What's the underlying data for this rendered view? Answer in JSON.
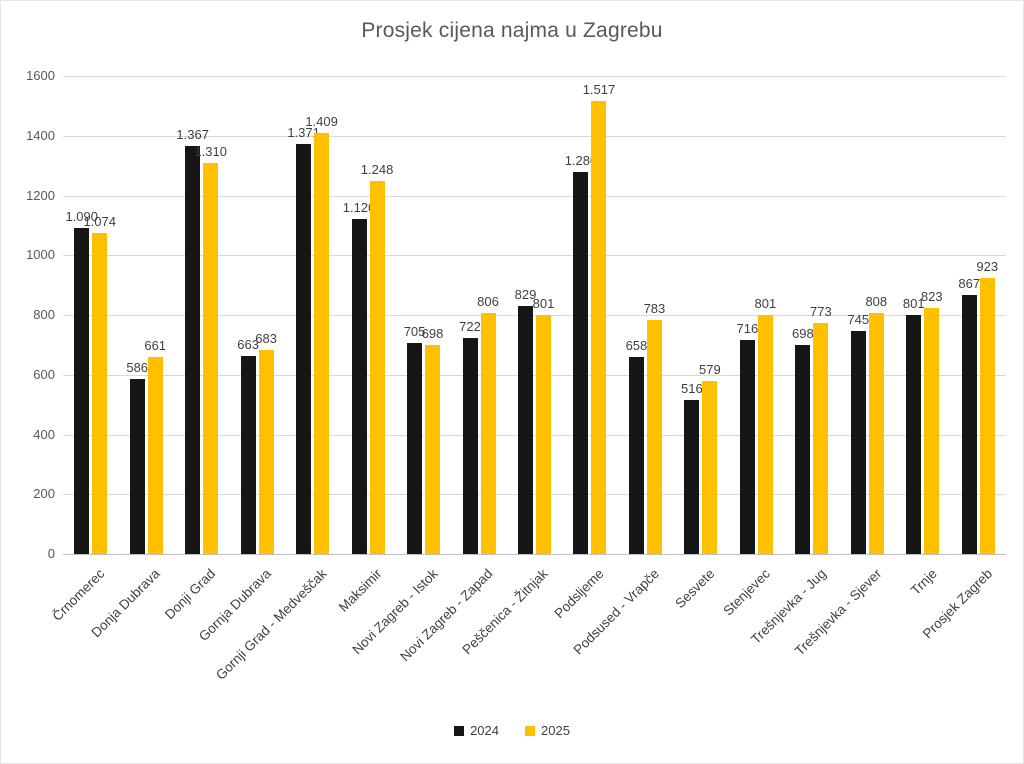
{
  "chart_data": {
    "type": "bar",
    "title": "Prosjek cijena najma u Zagrebu",
    "categories": [
      "Črnomerec",
      "Donja Dubrava",
      "Donji Grad",
      "Gornja Dubrava",
      "Gornji Grad - Medveščak",
      "Maksimir",
      "Novi Zagreb - Istok",
      "Novi Zagreb - Zapad",
      "Peščenica - Žitnjak",
      "Podsljeme",
      "Podsused - Vrapče",
      "Sesvete",
      "Stenjevec",
      "Trešnjevka - Jug",
      "Trešnjevka - Sjever",
      "Trnje",
      "Prosjek Zagreb"
    ],
    "series": [
      {
        "name": "2024",
        "color": "#161616",
        "values": [
          1090,
          586,
          1367,
          663,
          1371,
          1120,
          705,
          722,
          829,
          1280,
          658,
          516,
          716,
          698,
          745,
          801,
          867
        ],
        "labels": [
          "1.090",
          "586",
          "1.367",
          "663",
          "1.371",
          "1.120",
          "705",
          "722",
          "829",
          "1.280",
          "658",
          "516",
          "716",
          "698",
          "745",
          "801",
          "867"
        ]
      },
      {
        "name": "2025",
        "color": "#FFC000",
        "values": [
          1074,
          661,
          1310,
          683,
          1409,
          1248,
          698,
          806,
          801,
          1517,
          783,
          579,
          801,
          773,
          808,
          823,
          923
        ],
        "labels": [
          "1.074",
          "661",
          "1.310",
          "683",
          "1.409",
          "1.248",
          "698",
          "806",
          "801",
          "1.517",
          "783",
          "579",
          "801",
          "773",
          "808",
          "823",
          "923"
        ]
      }
    ],
    "xlabel": "",
    "ylabel": "",
    "ylim": [
      0,
      1600
    ],
    "ytick_step": 200,
    "grid": true,
    "legend_position": "bottom"
  }
}
